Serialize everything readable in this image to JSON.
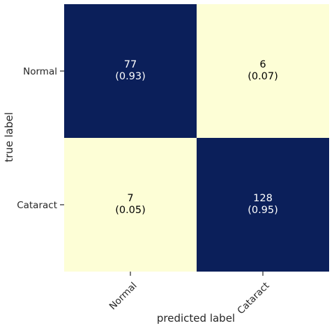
{
  "chart_data": {
    "type": "heatmap",
    "title": "",
    "xlabel": "predicted label",
    "ylabel": "true label",
    "x_categories": [
      "Normal",
      "Cataract"
    ],
    "y_categories": [
      "Normal",
      "Cataract"
    ],
    "counts": [
      [
        77,
        6
      ],
      [
        7,
        128
      ]
    ],
    "cell_labels": [
      [
        "77\n(0.93)",
        "6\n(0.07)"
      ],
      [
        "7\n(0.05)",
        "128\n(0.95)"
      ]
    ],
    "colors": {
      "high": "#0b1f5a",
      "low": "#fdfed6",
      "text_on_dark": "#ffffff",
      "text_on_light": "#000000"
    },
    "grid": false,
    "legend": "none"
  }
}
